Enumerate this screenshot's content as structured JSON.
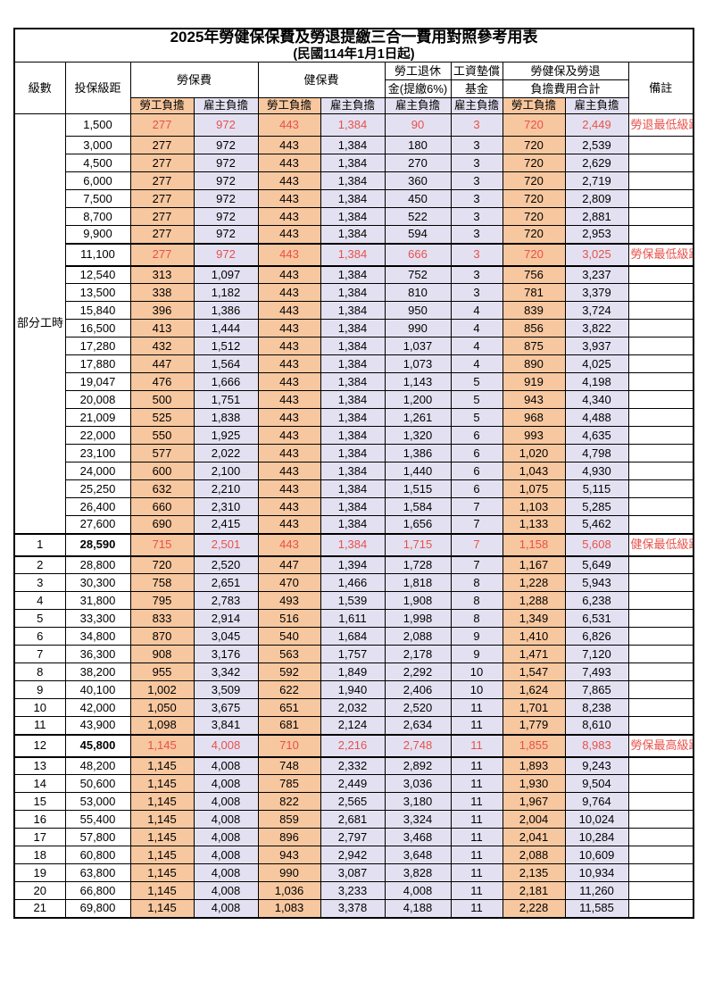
{
  "title": "2025年勞健保保費及勞退提繳三合一費用對照參考用表",
  "subtitle": "(民國114年1月1日起)",
  "header": {
    "level": "級數",
    "salary_bracket": "投保級距",
    "labor_insurance": "勞保費",
    "health_insurance": "健保費",
    "pension_line1": "勞工退休",
    "pension_line2": "金(提繳6%)",
    "wage_fund_line1": "工資墊償",
    "wage_fund_line2": "基金",
    "total_line1": "勞健保及勞退",
    "total_line2": "負擔費用合計",
    "remark": "備註",
    "employee_burden": "勞工負擔",
    "employer_burden": "雇主負擔"
  },
  "part_time_label": "部分工時",
  "part_time_rowspan": 23,
  "colors": {
    "employee_bg": "#F7C79F",
    "employer_bg": "#E3E1F1",
    "highlight_red": "#E8514B",
    "border": "#000000"
  },
  "rows": [
    {
      "level": null,
      "salary": "1,500",
      "values": [
        "277",
        "972",
        "443",
        "1,384",
        "90",
        "3",
        "720",
        "2,449"
      ],
      "note": "勞退最低級距",
      "highlight": true,
      "thick": false,
      "bold": false
    },
    {
      "level": null,
      "salary": "3,000",
      "values": [
        "277",
        "972",
        "443",
        "1,384",
        "180",
        "3",
        "720",
        "2,539"
      ],
      "note": "",
      "highlight": false,
      "thick": false,
      "bold": false
    },
    {
      "level": null,
      "salary": "4,500",
      "values": [
        "277",
        "972",
        "443",
        "1,384",
        "270",
        "3",
        "720",
        "2,629"
      ],
      "note": "",
      "highlight": false,
      "thick": false,
      "bold": false
    },
    {
      "level": null,
      "salary": "6,000",
      "values": [
        "277",
        "972",
        "443",
        "1,384",
        "360",
        "3",
        "720",
        "2,719"
      ],
      "note": "",
      "highlight": false,
      "thick": false,
      "bold": false
    },
    {
      "level": null,
      "salary": "7,500",
      "values": [
        "277",
        "972",
        "443",
        "1,384",
        "450",
        "3",
        "720",
        "2,809"
      ],
      "note": "",
      "highlight": false,
      "thick": false,
      "bold": false
    },
    {
      "level": null,
      "salary": "8,700",
      "values": [
        "277",
        "972",
        "443",
        "1,384",
        "522",
        "3",
        "720",
        "2,881"
      ],
      "note": "",
      "highlight": false,
      "thick": false,
      "bold": false
    },
    {
      "level": null,
      "salary": "9,900",
      "values": [
        "277",
        "972",
        "443",
        "1,384",
        "594",
        "3",
        "720",
        "2,953"
      ],
      "note": "",
      "highlight": false,
      "thick": false,
      "bold": false
    },
    {
      "level": null,
      "salary": "11,100",
      "values": [
        "277",
        "972",
        "443",
        "1,384",
        "666",
        "3",
        "720",
        "3,025"
      ],
      "note": "勞保最低級距",
      "highlight": true,
      "thick": true,
      "bold": false
    },
    {
      "level": null,
      "salary": "12,540",
      "values": [
        "313",
        "1,097",
        "443",
        "1,384",
        "752",
        "3",
        "756",
        "3,237"
      ],
      "note": "",
      "highlight": false,
      "thick": false,
      "bold": false
    },
    {
      "level": null,
      "salary": "13,500",
      "values": [
        "338",
        "1,182",
        "443",
        "1,384",
        "810",
        "3",
        "781",
        "3,379"
      ],
      "note": "",
      "highlight": false,
      "thick": false,
      "bold": false
    },
    {
      "level": null,
      "salary": "15,840",
      "values": [
        "396",
        "1,386",
        "443",
        "1,384",
        "950",
        "4",
        "839",
        "3,724"
      ],
      "note": "",
      "highlight": false,
      "thick": false,
      "bold": false
    },
    {
      "level": null,
      "salary": "16,500",
      "values": [
        "413",
        "1,444",
        "443",
        "1,384",
        "990",
        "4",
        "856",
        "3,822"
      ],
      "note": "",
      "highlight": false,
      "thick": false,
      "bold": false
    },
    {
      "level": null,
      "salary": "17,280",
      "values": [
        "432",
        "1,512",
        "443",
        "1,384",
        "1,037",
        "4",
        "875",
        "3,937"
      ],
      "note": "",
      "highlight": false,
      "thick": false,
      "bold": false
    },
    {
      "level": null,
      "salary": "17,880",
      "values": [
        "447",
        "1,564",
        "443",
        "1,384",
        "1,073",
        "4",
        "890",
        "4,025"
      ],
      "note": "",
      "highlight": false,
      "thick": false,
      "bold": false
    },
    {
      "level": null,
      "salary": "19,047",
      "values": [
        "476",
        "1,666",
        "443",
        "1,384",
        "1,143",
        "5",
        "919",
        "4,198"
      ],
      "note": "",
      "highlight": false,
      "thick": false,
      "bold": false
    },
    {
      "level": null,
      "salary": "20,008",
      "values": [
        "500",
        "1,751",
        "443",
        "1,384",
        "1,200",
        "5",
        "943",
        "4,340"
      ],
      "note": "",
      "highlight": false,
      "thick": false,
      "bold": false
    },
    {
      "level": null,
      "salary": "21,009",
      "values": [
        "525",
        "1,838",
        "443",
        "1,384",
        "1,261",
        "5",
        "968",
        "4,488"
      ],
      "note": "",
      "highlight": false,
      "thick": false,
      "bold": false
    },
    {
      "level": null,
      "salary": "22,000",
      "values": [
        "550",
        "1,925",
        "443",
        "1,384",
        "1,320",
        "6",
        "993",
        "4,635"
      ],
      "note": "",
      "highlight": false,
      "thick": false,
      "bold": false
    },
    {
      "level": null,
      "salary": "23,100",
      "values": [
        "577",
        "2,022",
        "443",
        "1,384",
        "1,386",
        "6",
        "1,020",
        "4,798"
      ],
      "note": "",
      "highlight": false,
      "thick": false,
      "bold": false
    },
    {
      "level": null,
      "salary": "24,000",
      "values": [
        "600",
        "2,100",
        "443",
        "1,384",
        "1,440",
        "6",
        "1,043",
        "4,930"
      ],
      "note": "",
      "highlight": false,
      "thick": false,
      "bold": false
    },
    {
      "level": null,
      "salary": "25,250",
      "values": [
        "632",
        "2,210",
        "443",
        "1,384",
        "1,515",
        "6",
        "1,075",
        "5,115"
      ],
      "note": "",
      "highlight": false,
      "thick": false,
      "bold": false
    },
    {
      "level": null,
      "salary": "26,400",
      "values": [
        "660",
        "2,310",
        "443",
        "1,384",
        "1,584",
        "7",
        "1,103",
        "5,285"
      ],
      "note": "",
      "highlight": false,
      "thick": false,
      "bold": false
    },
    {
      "level": null,
      "salary": "27,600",
      "values": [
        "690",
        "2,415",
        "443",
        "1,384",
        "1,656",
        "7",
        "1,133",
        "5,462"
      ],
      "note": "",
      "highlight": false,
      "thick": false,
      "bold": false
    },
    {
      "level": "1",
      "salary": "28,590",
      "values": [
        "715",
        "2,501",
        "443",
        "1,384",
        "1,715",
        "7",
        "1,158",
        "5,608"
      ],
      "note": "健保最低級距",
      "highlight": true,
      "thick": true,
      "bold": true
    },
    {
      "level": "2",
      "salary": "28,800",
      "values": [
        "720",
        "2,520",
        "447",
        "1,394",
        "1,728",
        "7",
        "1,167",
        "5,649"
      ],
      "note": "",
      "highlight": false,
      "thick": false,
      "bold": false
    },
    {
      "level": "3",
      "salary": "30,300",
      "values": [
        "758",
        "2,651",
        "470",
        "1,466",
        "1,818",
        "8",
        "1,228",
        "5,943"
      ],
      "note": "",
      "highlight": false,
      "thick": false,
      "bold": false
    },
    {
      "level": "4",
      "salary": "31,800",
      "values": [
        "795",
        "2,783",
        "493",
        "1,539",
        "1,908",
        "8",
        "1,288",
        "6,238"
      ],
      "note": "",
      "highlight": false,
      "thick": false,
      "bold": false
    },
    {
      "level": "5",
      "salary": "33,300",
      "values": [
        "833",
        "2,914",
        "516",
        "1,611",
        "1,998",
        "8",
        "1,349",
        "6,531"
      ],
      "note": "",
      "highlight": false,
      "thick": false,
      "bold": false
    },
    {
      "level": "6",
      "salary": "34,800",
      "values": [
        "870",
        "3,045",
        "540",
        "1,684",
        "2,088",
        "9",
        "1,410",
        "6,826"
      ],
      "note": "",
      "highlight": false,
      "thick": false,
      "bold": false
    },
    {
      "level": "7",
      "salary": "36,300",
      "values": [
        "908",
        "3,176",
        "563",
        "1,757",
        "2,178",
        "9",
        "1,471",
        "7,120"
      ],
      "note": "",
      "highlight": false,
      "thick": false,
      "bold": false
    },
    {
      "level": "8",
      "salary": "38,200",
      "values": [
        "955",
        "3,342",
        "592",
        "1,849",
        "2,292",
        "10",
        "1,547",
        "7,493"
      ],
      "note": "",
      "highlight": false,
      "thick": false,
      "bold": false
    },
    {
      "level": "9",
      "salary": "40,100",
      "values": [
        "1,002",
        "3,509",
        "622",
        "1,940",
        "2,406",
        "10",
        "1,624",
        "7,865"
      ],
      "note": "",
      "highlight": false,
      "thick": false,
      "bold": false
    },
    {
      "level": "10",
      "salary": "42,000",
      "values": [
        "1,050",
        "3,675",
        "651",
        "2,032",
        "2,520",
        "11",
        "1,701",
        "8,238"
      ],
      "note": "",
      "highlight": false,
      "thick": false,
      "bold": false
    },
    {
      "level": "11",
      "salary": "43,900",
      "values": [
        "1,098",
        "3,841",
        "681",
        "2,124",
        "2,634",
        "11",
        "1,779",
        "8,610"
      ],
      "note": "",
      "highlight": false,
      "thick": false,
      "bold": false
    },
    {
      "level": "12",
      "salary": "45,800",
      "values": [
        "1,145",
        "4,008",
        "710",
        "2,216",
        "2,748",
        "11",
        "1,855",
        "8,983"
      ],
      "note": "勞保最高級距",
      "highlight": true,
      "thick": true,
      "bold": true
    },
    {
      "level": "13",
      "salary": "48,200",
      "values": [
        "1,145",
        "4,008",
        "748",
        "2,332",
        "2,892",
        "11",
        "1,893",
        "9,243"
      ],
      "note": "",
      "highlight": false,
      "thick": false,
      "bold": false
    },
    {
      "level": "14",
      "salary": "50,600",
      "values": [
        "1,145",
        "4,008",
        "785",
        "2,449",
        "3,036",
        "11",
        "1,930",
        "9,504"
      ],
      "note": "",
      "highlight": false,
      "thick": false,
      "bold": false
    },
    {
      "level": "15",
      "salary": "53,000",
      "values": [
        "1,145",
        "4,008",
        "822",
        "2,565",
        "3,180",
        "11",
        "1,967",
        "9,764"
      ],
      "note": "",
      "highlight": false,
      "thick": false,
      "bold": false
    },
    {
      "level": "16",
      "salary": "55,400",
      "values": [
        "1,145",
        "4,008",
        "859",
        "2,681",
        "3,324",
        "11",
        "2,004",
        "10,024"
      ],
      "note": "",
      "highlight": false,
      "thick": false,
      "bold": false
    },
    {
      "level": "17",
      "salary": "57,800",
      "values": [
        "1,145",
        "4,008",
        "896",
        "2,797",
        "3,468",
        "11",
        "2,041",
        "10,284"
      ],
      "note": "",
      "highlight": false,
      "thick": false,
      "bold": false
    },
    {
      "level": "18",
      "salary": "60,800",
      "values": [
        "1,145",
        "4,008",
        "943",
        "2,942",
        "3,648",
        "11",
        "2,088",
        "10,609"
      ],
      "note": "",
      "highlight": false,
      "thick": false,
      "bold": false
    },
    {
      "level": "19",
      "salary": "63,800",
      "values": [
        "1,145",
        "4,008",
        "990",
        "3,087",
        "3,828",
        "11",
        "2,135",
        "10,934"
      ],
      "note": "",
      "highlight": false,
      "thick": false,
      "bold": false
    },
    {
      "level": "20",
      "salary": "66,800",
      "values": [
        "1,145",
        "4,008",
        "1,036",
        "3,233",
        "4,008",
        "11",
        "2,181",
        "11,260"
      ],
      "note": "",
      "highlight": false,
      "thick": false,
      "bold": false
    },
    {
      "level": "21",
      "salary": "69,800",
      "values": [
        "1,145",
        "4,008",
        "1,083",
        "3,378",
        "4,188",
        "11",
        "2,228",
        "11,585"
      ],
      "note": "",
      "highlight": false,
      "thick": false,
      "bold": false
    }
  ]
}
